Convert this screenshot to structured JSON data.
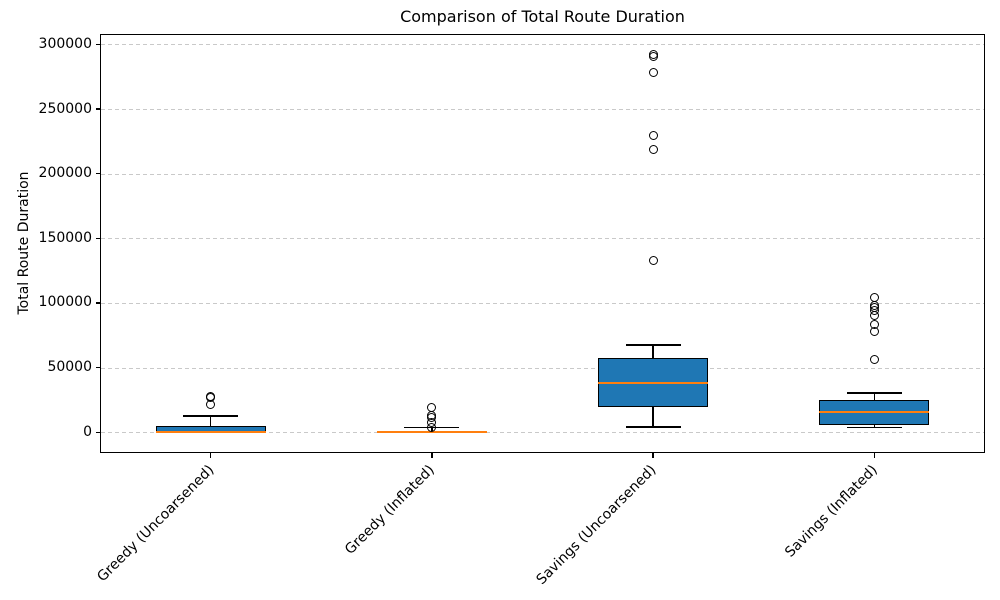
{
  "chart_data": {
    "type": "boxplot",
    "title": "Comparison of Total Route Duration",
    "ylabel": "Total Route Duration",
    "xlabel": "",
    "ylim": [
      -16000,
      308000
    ],
    "yticks": [
      0,
      50000,
      100000,
      150000,
      200000,
      250000,
      300000
    ],
    "grid": "horizontal-dashed",
    "legend": "none",
    "box_fill_color": "#1f77b4",
    "median_color": "#ff7f0e",
    "categories": [
      "Greedy (Uncoarsened)",
      "Greedy (Inflated)",
      "Savings (Uncoarsened)",
      "Savings (Inflated)"
    ],
    "series": [
      {
        "label": "Greedy (Uncoarsened)",
        "whisker_low": 0,
        "q1": 0,
        "median": 300,
        "q3": 5000,
        "whisker_high": 12500,
        "outliers": [
          27800,
          26800,
          21500
        ]
      },
      {
        "label": "Greedy (Inflated)",
        "whisker_low": 0,
        "q1": 100,
        "median": 400,
        "q3": 900,
        "whisker_high": 3800,
        "outliers": [
          19500,
          12800,
          11600,
          7200,
          3400
        ]
      },
      {
        "label": "Savings (Uncoarsened)",
        "whisker_low": 4000,
        "q1": 19500,
        "median": 38000,
        "q3": 57500,
        "whisker_high": 67500,
        "outliers": [
          292500,
          290800,
          278000,
          229500,
          218500,
          132500
        ]
      },
      {
        "label": "Savings (Inflated)",
        "whisker_low": 3800,
        "q1": 5800,
        "median": 15800,
        "q3": 25000,
        "whisker_high": 30500,
        "outliers": [
          104500,
          98200,
          96800,
          94500,
          90000,
          83000,
          78200,
          56500
        ]
      }
    ]
  }
}
